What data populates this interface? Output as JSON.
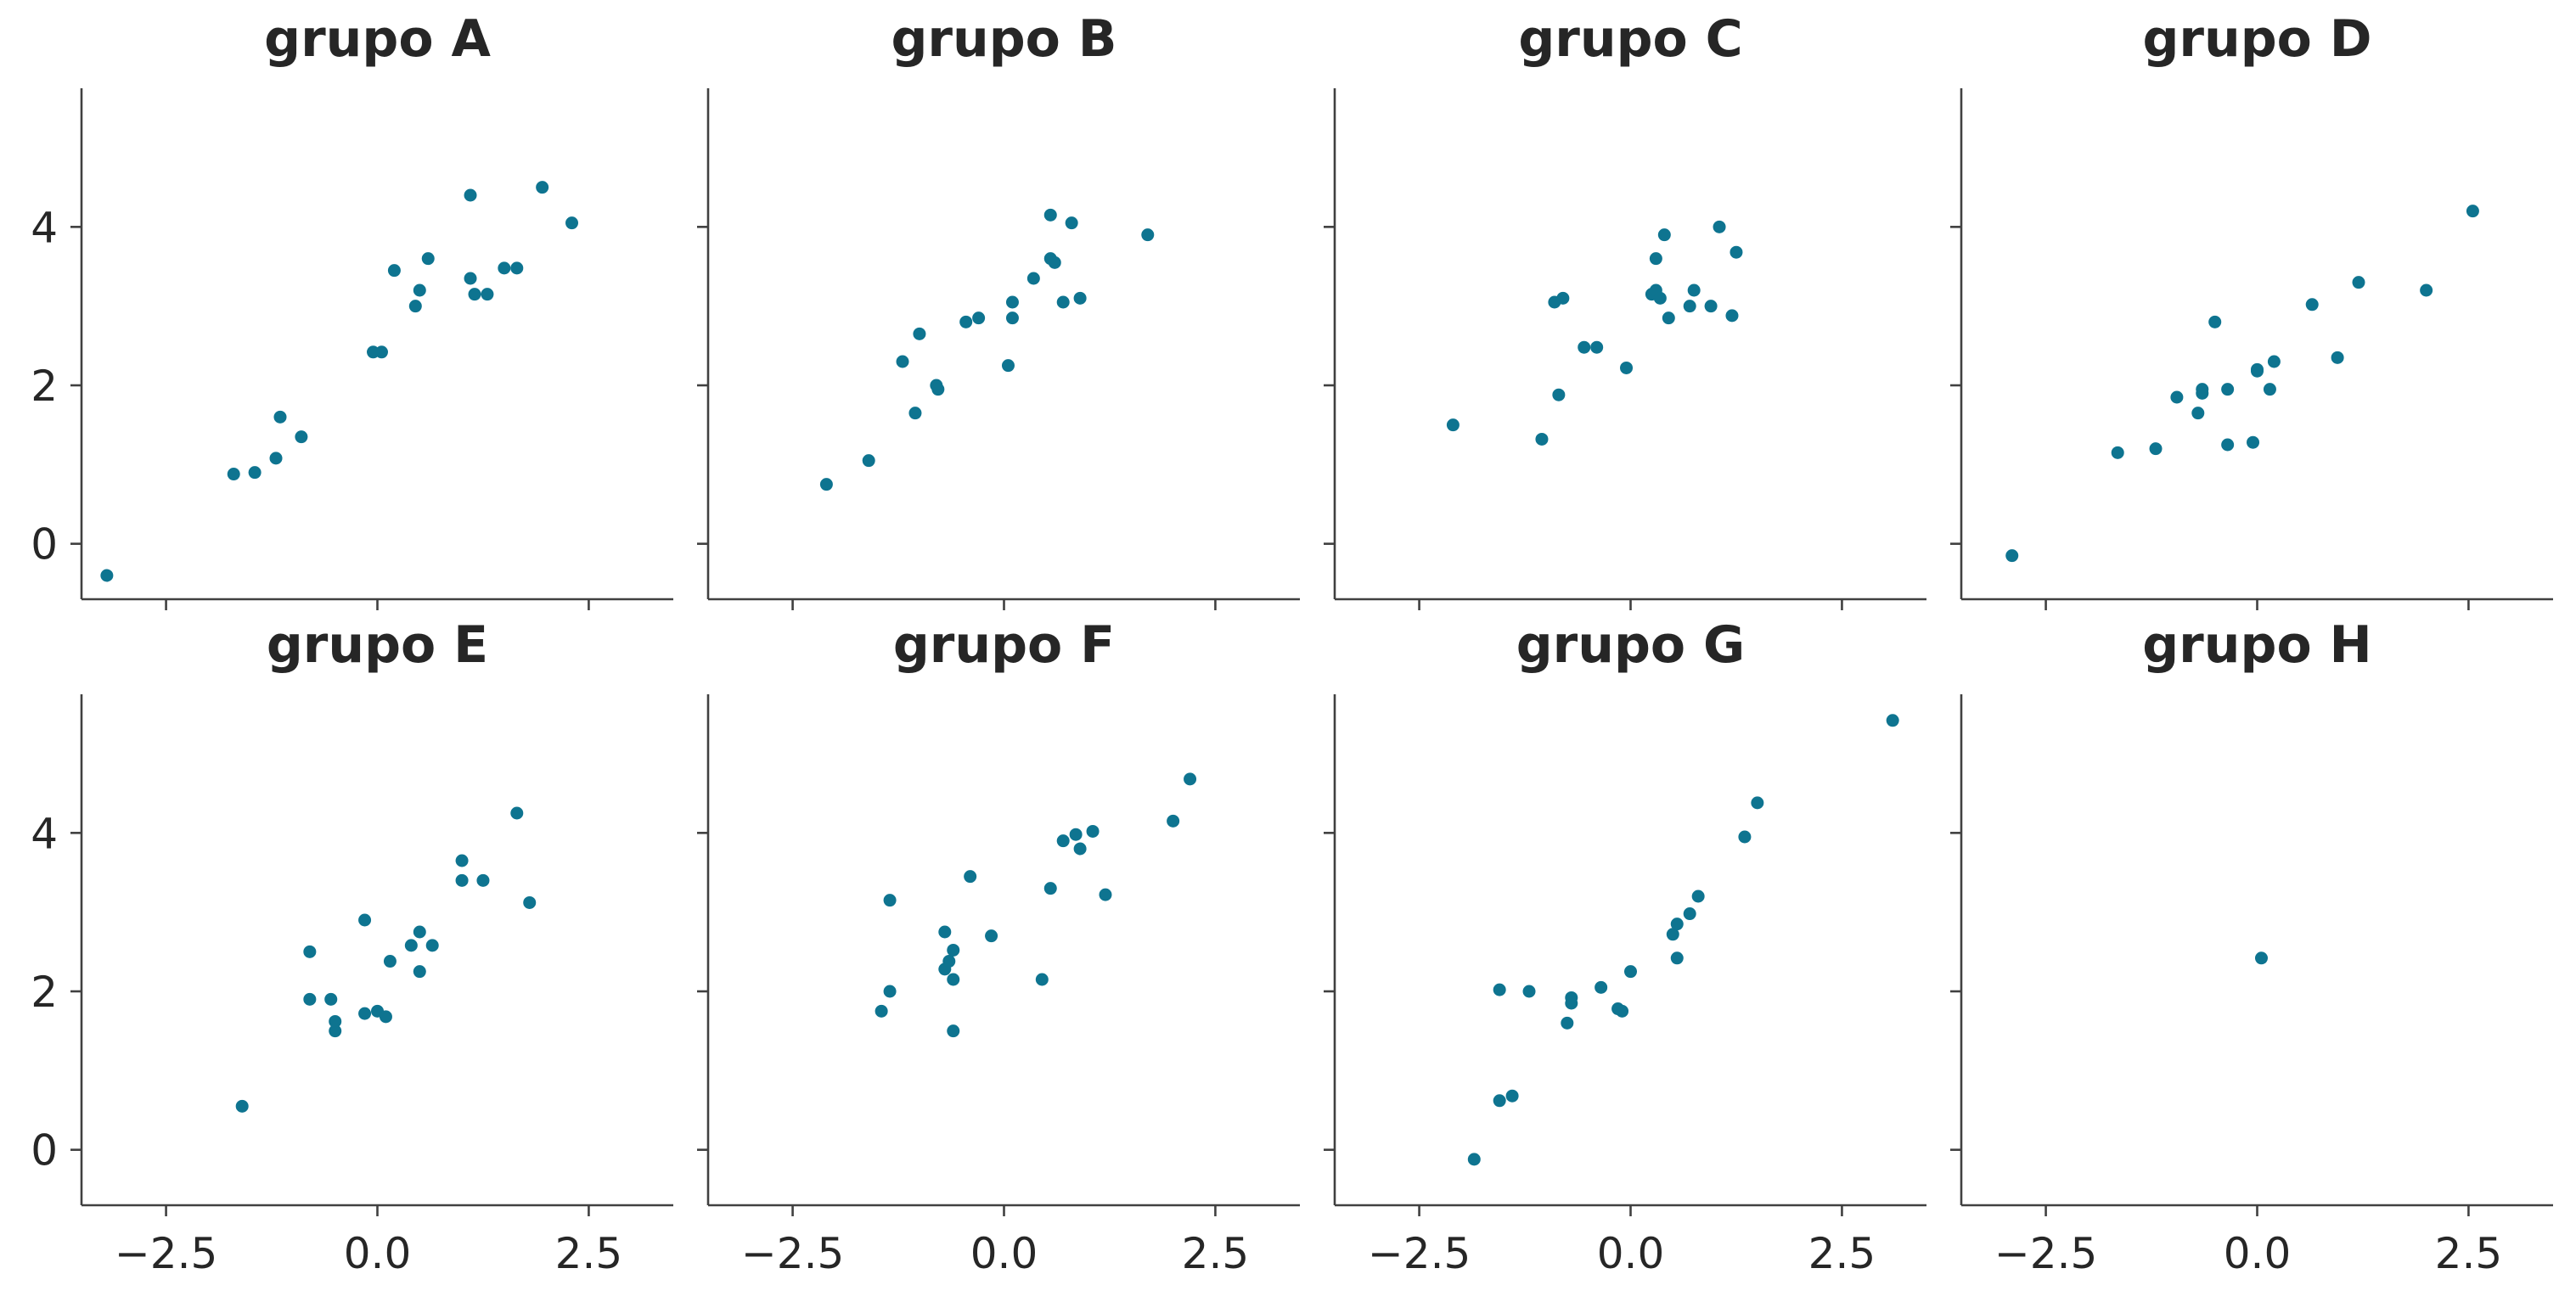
{
  "chart_data": {
    "type": "scatter",
    "layout": "facet-grid",
    "sharex": true,
    "sharey": true,
    "xlim": [
      -3.5,
      3.5
    ],
    "ylim": [
      -0.7,
      5.75
    ],
    "xticks": [
      -2.5,
      0.0,
      2.5
    ],
    "xtick_labels": [
      "−2.5",
      "0.0",
      "2.5"
    ],
    "yticks": [
      0,
      2,
      4
    ],
    "ytick_labels": [
      "0",
      "2",
      "4"
    ],
    "grid": false,
    "marker_color": "#0e7490",
    "panels": [
      {
        "title": "grupo A",
        "x": [
          -3.2,
          -1.7,
          -1.45,
          -1.2,
          -1.15,
          -0.9,
          -0.05,
          0.05,
          0.2,
          0.45,
          0.5,
          0.6,
          1.1,
          1.1,
          1.15,
          1.3,
          1.5,
          1.65,
          1.95,
          2.3
        ],
        "y": [
          -0.4,
          0.88,
          0.9,
          1.08,
          1.6,
          1.35,
          2.42,
          2.42,
          3.45,
          3.0,
          3.2,
          3.6,
          4.4,
          3.35,
          3.15,
          3.15,
          3.48,
          3.48,
          4.5,
          4.05
        ]
      },
      {
        "title": "grupo B",
        "x": [
          -2.1,
          -1.6,
          -1.2,
          -1.05,
          -1.0,
          -0.8,
          -0.78,
          -0.45,
          -0.3,
          0.05,
          0.1,
          0.1,
          0.35,
          0.55,
          0.55,
          0.6,
          0.7,
          0.8,
          0.9,
          1.7
        ],
        "y": [
          0.75,
          1.05,
          2.3,
          1.65,
          2.65,
          2.0,
          1.95,
          2.8,
          2.85,
          2.25,
          3.05,
          2.85,
          3.35,
          4.15,
          3.6,
          3.55,
          3.05,
          4.05,
          3.1,
          3.9
        ]
      },
      {
        "title": "grupo C",
        "x": [
          -2.1,
          -1.05,
          -0.9,
          -0.85,
          -0.8,
          -0.55,
          -0.4,
          -0.05,
          0.25,
          0.3,
          0.3,
          0.35,
          0.4,
          0.45,
          0.7,
          0.75,
          0.95,
          1.05,
          1.2,
          1.25
        ],
        "y": [
          1.5,
          1.32,
          3.05,
          1.88,
          3.1,
          2.48,
          2.48,
          2.22,
          3.15,
          3.2,
          3.6,
          3.1,
          3.9,
          2.85,
          3.0,
          3.2,
          3.0,
          4.0,
          2.88,
          3.68
        ]
      },
      {
        "title": "grupo D",
        "x": [
          -2.9,
          -1.65,
          -1.2,
          -0.95,
          -0.7,
          -0.65,
          -0.65,
          -0.5,
          -0.35,
          -0.35,
          -0.05,
          0.0,
          0.0,
          0.15,
          0.2,
          0.65,
          0.95,
          1.2,
          2.0,
          2.55
        ],
        "y": [
          -0.15,
          1.15,
          1.2,
          1.85,
          1.65,
          1.9,
          1.95,
          2.8,
          1.25,
          1.95,
          1.28,
          2.18,
          2.2,
          1.95,
          2.3,
          3.02,
          2.35,
          3.3,
          3.2,
          4.2
        ]
      },
      {
        "title": "grupo E",
        "x": [
          -1.6,
          -0.8,
          -0.8,
          -0.55,
          -0.5,
          -0.5,
          -0.15,
          -0.15,
          0.0,
          0.1,
          0.15,
          0.4,
          0.5,
          0.5,
          0.65,
          1.0,
          1.0,
          1.25,
          1.65,
          1.8
        ],
        "y": [
          0.55,
          2.5,
          1.9,
          1.9,
          1.5,
          1.62,
          2.9,
          1.72,
          1.75,
          1.68,
          2.38,
          2.58,
          2.75,
          2.25,
          2.58,
          3.65,
          3.4,
          3.4,
          4.25,
          3.12
        ]
      },
      {
        "title": "grupo F",
        "x": [
          -1.45,
          -1.35,
          -1.35,
          -0.7,
          -0.7,
          -0.65,
          -0.6,
          -0.6,
          -0.6,
          -0.4,
          -0.15,
          0.45,
          0.55,
          0.7,
          0.85,
          0.9,
          1.05,
          1.2,
          2.0,
          2.2
        ],
        "y": [
          1.75,
          2.0,
          3.15,
          2.28,
          2.75,
          2.38,
          2.52,
          2.15,
          1.5,
          3.45,
          2.7,
          2.15,
          3.3,
          3.9,
          3.98,
          3.8,
          4.02,
          3.22,
          4.15,
          4.68
        ]
      },
      {
        "title": "grupo G",
        "x": [
          -1.85,
          -1.55,
          -1.55,
          -1.4,
          -1.2,
          -0.75,
          -0.7,
          -0.7,
          -0.35,
          -0.15,
          -0.1,
          0.0,
          0.5,
          0.55,
          0.55,
          0.7,
          0.8,
          1.35,
          1.5,
          3.1
        ],
        "y": [
          -0.12,
          2.02,
          0.62,
          0.68,
          2.0,
          1.6,
          1.85,
          1.92,
          2.05,
          1.78,
          1.75,
          2.25,
          2.72,
          2.85,
          2.42,
          2.98,
          3.2,
          3.95,
          4.38,
          5.42
        ]
      },
      {
        "title": "grupo H",
        "x": [
          0.05
        ],
        "y": [
          2.42
        ]
      }
    ]
  }
}
